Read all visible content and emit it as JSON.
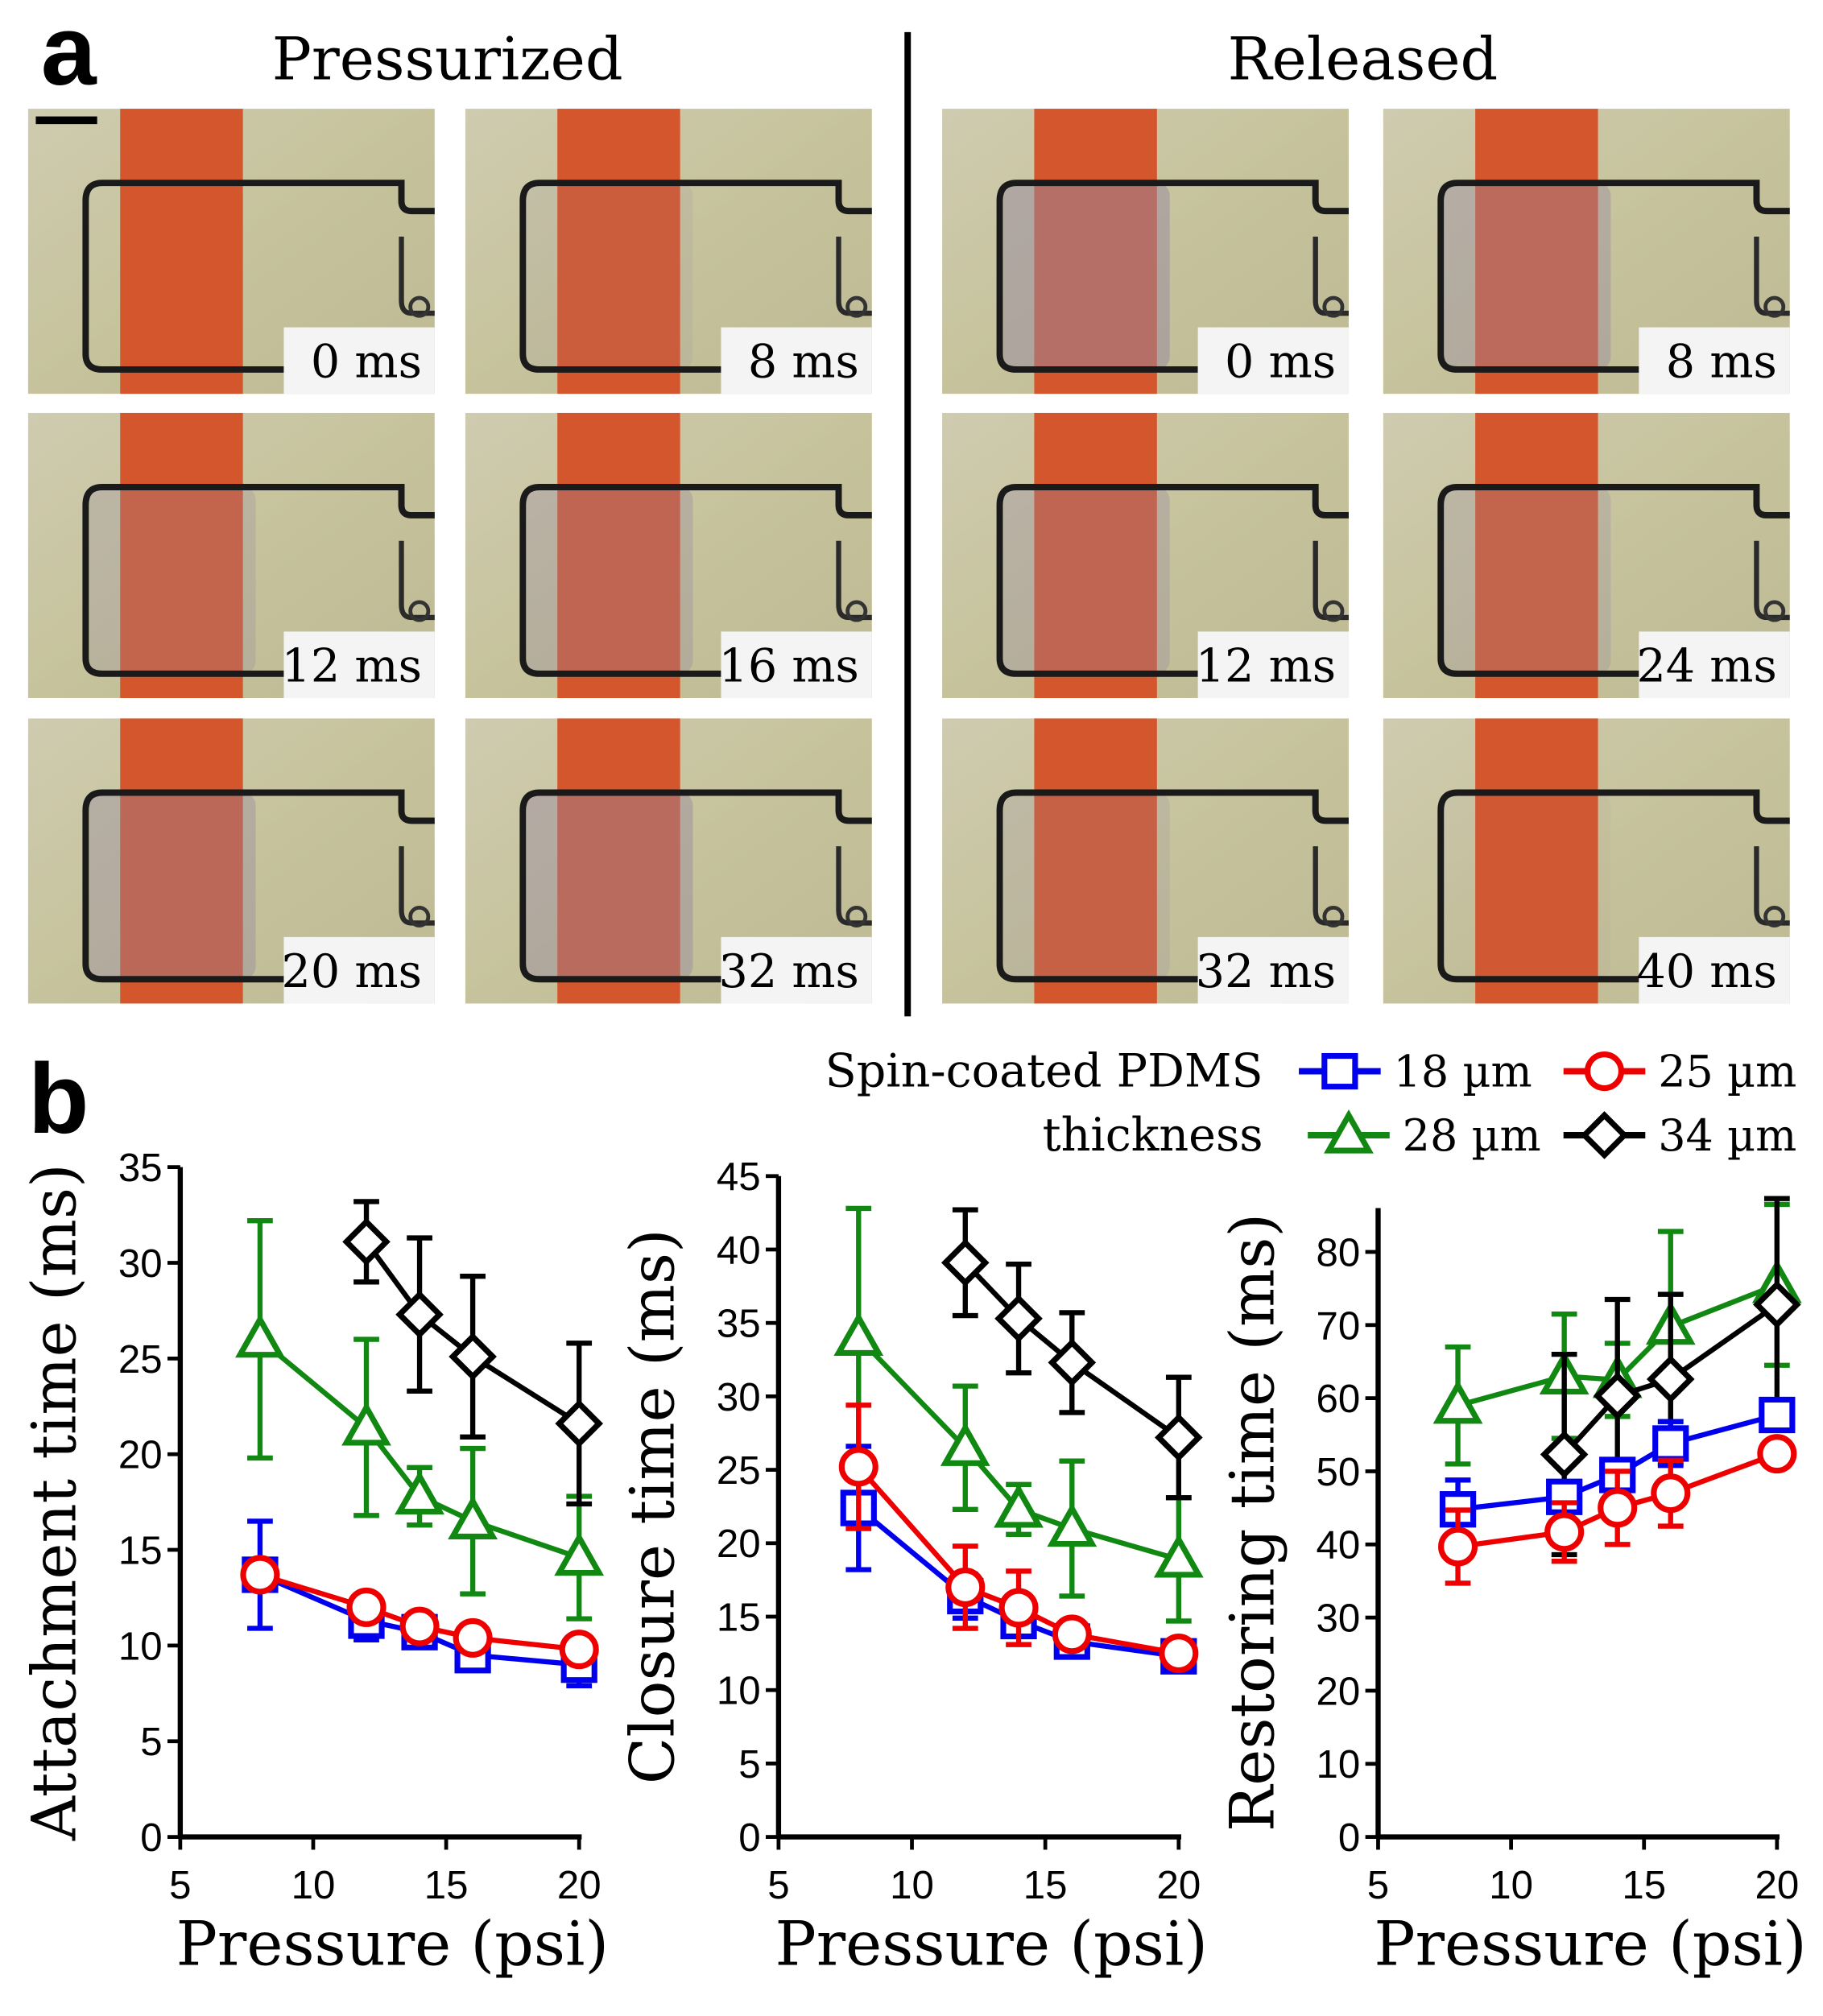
{
  "panel_a": {
    "label": "a",
    "pressurized_title": "Pressurized",
    "released_title": "Released",
    "pressurized_frames": [
      "0 ms",
      "8 ms",
      "12 ms",
      "16 ms",
      "20 ms",
      "32 ms"
    ],
    "released_frames": [
      "0 ms",
      "8 ms",
      "12 ms",
      "24 ms",
      "32 ms",
      "40 ms"
    ]
  },
  "panel_b": {
    "label": "b",
    "legend_title_1": "Spin-coated PDMS",
    "legend_title_2": "thickness",
    "legend": [
      {
        "name": "18 µm",
        "color": "#0000ee",
        "marker": "square"
      },
      {
        "name": "25 µm",
        "color": "#ee0000",
        "marker": "circle"
      },
      {
        "name": "28 µm",
        "color": "#118811",
        "marker": "triangle"
      },
      {
        "name": "34 µm",
        "color": "#000000",
        "marker": "diamond"
      }
    ]
  },
  "chart_data": [
    {
      "type": "line",
      "title": "",
      "xlabel": "Pressure (psi)",
      "ylabel": "Attachment time (ms)",
      "xlim": [
        5,
        20
      ],
      "ylim": [
        0,
        35
      ],
      "xticks": [
        5,
        10,
        15,
        20
      ],
      "yticks": [
        0,
        5,
        10,
        15,
        20,
        25,
        30,
        35
      ],
      "series": [
        {
          "name": "18 µm",
          "x": [
            8,
            12,
            14,
            16,
            20
          ],
          "y": [
            13.7,
            11.3,
            10.7,
            9.5,
            9.0
          ],
          "err": [
            2.8,
            1.0,
            0.5,
            0.7,
            1.1
          ]
        },
        {
          "name": "25 µm",
          "x": [
            8,
            12,
            14,
            16,
            20
          ],
          "y": [
            13.7,
            12.0,
            11.0,
            10.4,
            9.8
          ],
          "err": [
            0.5,
            0.5,
            0.4,
            0.4,
            0.4
          ]
        },
        {
          "name": "28 µm",
          "x": [
            8,
            12,
            14,
            16,
            20
          ],
          "y": [
            26.0,
            21.4,
            17.8,
            16.5,
            14.6
          ],
          "err": [
            6.2,
            4.6,
            1.5,
            3.8,
            3.2
          ]
        },
        {
          "name": "34 µm",
          "x": [
            12,
            14,
            16,
            20
          ],
          "y": [
            31.1,
            27.3,
            25.1,
            21.6
          ],
          "err": [
            2.1,
            4.0,
            4.2,
            4.2
          ]
        }
      ]
    },
    {
      "type": "line",
      "title": "",
      "xlabel": "Pressure (psi)",
      "ylabel": "Closure time (ms)",
      "xlim": [
        5,
        20
      ],
      "ylim": [
        0,
        45
      ],
      "xticks": [
        5,
        10,
        15,
        20
      ],
      "yticks": [
        0,
        5,
        10,
        15,
        20,
        25,
        30,
        35,
        40,
        45
      ],
      "series": [
        {
          "name": "18 µm",
          "x": [
            8,
            12,
            14,
            16,
            20
          ],
          "y": [
            22.4,
            16.4,
            14.7,
            13.3,
            12.3
          ],
          "err": [
            4.2,
            1.5,
            1.0,
            1.0,
            0.5
          ]
        },
        {
          "name": "25 µm",
          "x": [
            8,
            12,
            14,
            16,
            20
          ],
          "y": [
            25.2,
            17.0,
            15.6,
            13.8,
            12.5
          ],
          "err": [
            4.2,
            2.8,
            2.5,
            0.5,
            0.5
          ]
        },
        {
          "name": "28 µm",
          "x": [
            8,
            12,
            14,
            16,
            20
          ],
          "y": [
            34.0,
            26.5,
            22.3,
            21.0,
            18.9
          ],
          "err": [
            8.8,
            4.2,
            1.7,
            4.6,
            4.2
          ]
        },
        {
          "name": "34 µm",
          "x": [
            12,
            14,
            16,
            20
          ],
          "y": [
            39.1,
            35.3,
            32.3,
            27.2
          ],
          "err": [
            3.6,
            3.7,
            3.4,
            4.1
          ]
        }
      ]
    },
    {
      "type": "line",
      "title": "",
      "xlabel": "Pressure (psi)",
      "ylabel": "Restoring time (ms)",
      "xlim": [
        5,
        20
      ],
      "ylim": [
        0,
        86
      ],
      "xticks": [
        5,
        10,
        15,
        20
      ],
      "yticks": [
        0,
        10,
        20,
        30,
        40,
        50,
        60,
        70,
        80
      ],
      "series": [
        {
          "name": "18 µm",
          "x": [
            8,
            12,
            14,
            16,
            20
          ],
          "y": [
            44.8,
            46.5,
            49.5,
            53.8,
            57.7
          ],
          "err": [
            4.0,
            2.0,
            2.0,
            3.0,
            2.0
          ]
        },
        {
          "name": "25 µm",
          "x": [
            8,
            12,
            14,
            16,
            20
          ],
          "y": [
            39.7,
            41.7,
            45.0,
            47.0,
            52.4
          ],
          "err": [
            5.0,
            4.0,
            5.0,
            4.5,
            1.0
          ]
        },
        {
          "name": "28 µm",
          "x": [
            8,
            12,
            14,
            16,
            20
          ],
          "y": [
            59.0,
            63.0,
            62.5,
            69.8,
            75.5
          ],
          "err": [
            8.0,
            8.5,
            5.0,
            13.0,
            11.0
          ]
        },
        {
          "name": "34 µm",
          "x": [
            12,
            14,
            16,
            20
          ],
          "y": [
            52.3,
            60.3,
            62.6,
            72.8
          ],
          "err": [
            13.7,
            13.2,
            11.6,
            14.5
          ]
        }
      ]
    }
  ]
}
